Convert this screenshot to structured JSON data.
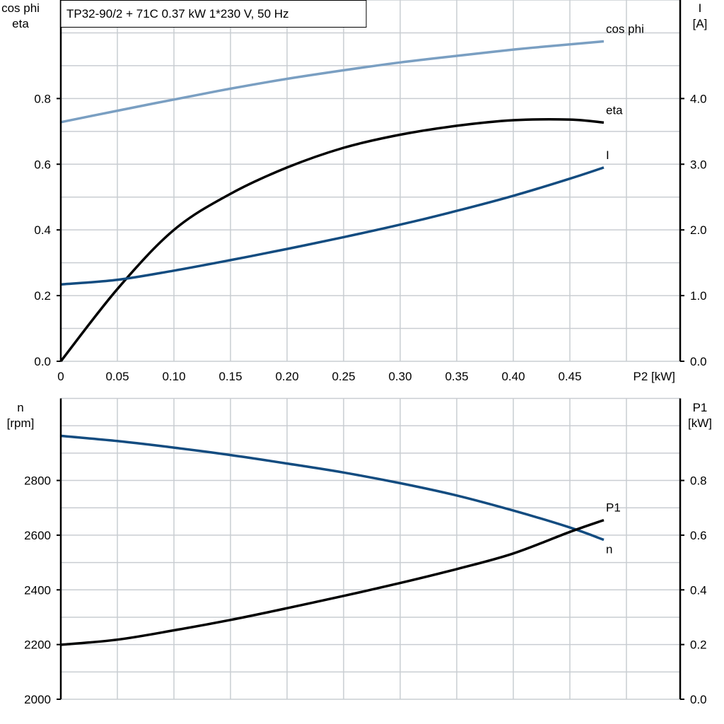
{
  "title": "TP32-90/2 + 71C   0.37 kW   1*230 V, 50 Hz",
  "colors": {
    "cos_phi": "#7a9fc2",
    "eta": "#000000",
    "I": "#134c80",
    "n": "#134c80",
    "P1": "#000000",
    "grid": "#c9cdd2"
  },
  "chart_data": [
    {
      "type": "line",
      "xlabel": "P2 [kW]",
      "xlim": [
        0,
        0.55
      ],
      "x_ticks": [
        "0",
        "0.05",
        "0.10",
        "0.15",
        "0.20",
        "0.25",
        "0.30",
        "0.35",
        "0.40",
        "0.45"
      ],
      "ylabel_left": [
        "cos phi",
        "eta"
      ],
      "ylim_left": [
        0,
        1.1
      ],
      "y_ticks_left": [
        "0.0",
        "0.2",
        "0.4",
        "0.6",
        "0.8"
      ],
      "ylabel_right": [
        "I",
        "[A]"
      ],
      "ylim_right": [
        0,
        5.5
      ],
      "y_ticks_right": [
        "0.0",
        "1.0",
        "2.0",
        "3.0",
        "4.0"
      ],
      "grid": true,
      "x": [
        0,
        0.05,
        0.1,
        0.15,
        0.2,
        0.25,
        0.3,
        0.35,
        0.4,
        0.45,
        0.48
      ],
      "series": [
        {
          "name": "cos phi",
          "axis": "left",
          "values": [
            0.728,
            0.763,
            0.797,
            0.83,
            0.86,
            0.886,
            0.91,
            0.93,
            0.949,
            0.965,
            0.974
          ]
        },
        {
          "name": "eta",
          "axis": "left",
          "values": [
            0.0,
            0.22,
            0.4,
            0.51,
            0.59,
            0.65,
            0.69,
            0.717,
            0.734,
            0.736,
            0.727
          ]
        },
        {
          "name": "I",
          "axis": "right",
          "values": [
            1.17,
            1.24,
            1.38,
            1.54,
            1.71,
            1.89,
            2.08,
            2.29,
            2.52,
            2.78,
            2.95
          ]
        }
      ]
    },
    {
      "type": "line",
      "xlim": [
        0,
        0.55
      ],
      "ylabel_left": [
        "n",
        "[rpm]"
      ],
      "ylim_left": [
        2000,
        3100
      ],
      "y_ticks_left": [
        "2000",
        "2200",
        "2400",
        "2600",
        "2800"
      ],
      "ylabel_right": [
        "P1",
        "[kW]"
      ],
      "ylim_right": [
        0,
        1.1
      ],
      "y_ticks_right": [
        "0.0",
        "0.2",
        "0.4",
        "0.6",
        "0.8"
      ],
      "grid": true,
      "x": [
        0,
        0.05,
        0.1,
        0.15,
        0.2,
        0.25,
        0.3,
        0.35,
        0.4,
        0.45,
        0.48
      ],
      "series": [
        {
          "name": "n",
          "axis": "left",
          "values": [
            2963,
            2944,
            2920,
            2893,
            2862,
            2829,
            2790,
            2745,
            2690,
            2628,
            2583
          ]
        },
        {
          "name": "P1",
          "axis": "right",
          "values": [
            0.199,
            0.218,
            0.252,
            0.29,
            0.333,
            0.378,
            0.425,
            0.476,
            0.533,
            0.612,
            0.655
          ]
        }
      ]
    }
  ]
}
